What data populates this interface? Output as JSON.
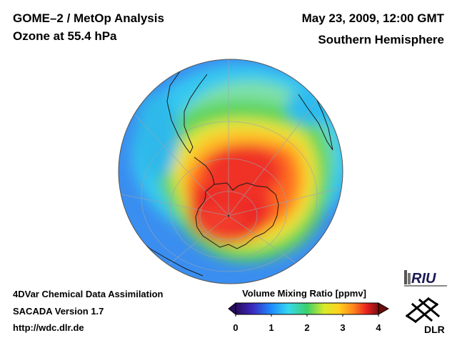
{
  "header": {
    "title_line1": "GOME–2 / MetOp Analysis",
    "title_line2": "Ozone at 55.4 hPa",
    "date": "May 23, 2009, 12:00 GMT",
    "region": "Southern Hemisphere"
  },
  "footer": {
    "line1": "4DVar Chemical Data Assimilation",
    "line2": "SACADA Version 1.7",
    "line3": "http://wdc.dlr.de"
  },
  "colorbar": {
    "title": "Volume Mixing Ratio [ppmv]",
    "ticks": [
      "0",
      "1",
      "2",
      "3",
      "4"
    ],
    "range": [
      0,
      4
    ],
    "colors": [
      "#2a0a5e",
      "#3a2ac0",
      "#1e8cff",
      "#36d8ee",
      "#3cd06a",
      "#d8ea2a",
      "#ffd21e",
      "#ff8a1e",
      "#e82020",
      "#7a1010"
    ]
  },
  "logos": {
    "riu": "RIU",
    "dlr": "DLR"
  },
  "map": {
    "projection": "orthographic, south-polar view",
    "field": "ozone volume mixing ratio",
    "colors": {
      "outer_blue": "#3a8ef0",
      "cyan": "#36d8ee",
      "green": "#4ece5a",
      "yellow": "#f2e62c",
      "orange": "#ff9a1e",
      "red": "#ee2a28"
    }
  }
}
